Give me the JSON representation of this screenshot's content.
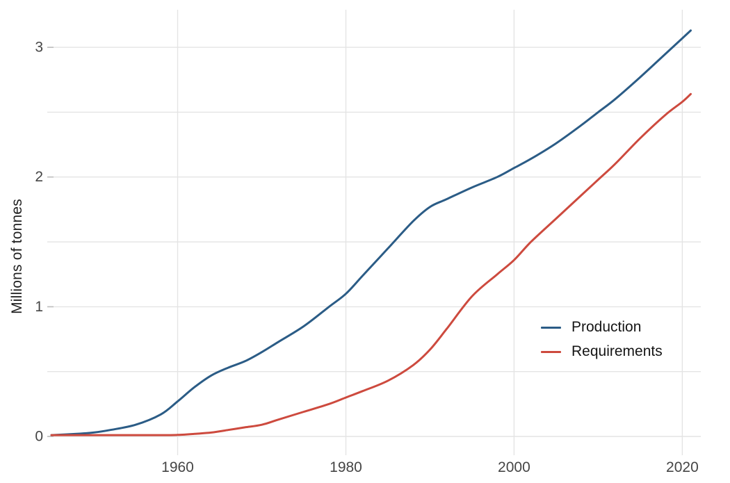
{
  "chart_data": {
    "type": "line",
    "title": "",
    "xlabel": "",
    "ylabel": "Millions of tonnes",
    "x_ticks": [
      1960,
      1980,
      2000,
      2020
    ],
    "y_ticks": [
      0,
      1,
      2,
      3
    ],
    "y_minor_gridlines": [
      0.5,
      1.5,
      2.5
    ],
    "xlim": [
      1944.5,
      2022.2
    ],
    "ylim": [
      0,
      3.29
    ],
    "grid": "on",
    "legend_position": "inside-right",
    "x": [
      1945,
      1948,
      1950,
      1952,
      1955,
      1958,
      1960,
      1962,
      1964,
      1966,
      1968,
      1970,
      1972,
      1975,
      1978,
      1980,
      1982,
      1985,
      1988,
      1990,
      1992,
      1995,
      1998,
      2000,
      2002,
      2005,
      2008,
      2010,
      2012,
      2015,
      2018,
      2020,
      2021
    ],
    "series": [
      {
        "name": "Production",
        "color": "#2b5c86",
        "values": [
          0.01,
          0.02,
          0.03,
          0.05,
          0.09,
          0.17,
          0.27,
          0.38,
          0.47,
          0.53,
          0.58,
          0.65,
          0.73,
          0.85,
          1.0,
          1.1,
          1.24,
          1.45,
          1.66,
          1.77,
          1.83,
          1.92,
          2.0,
          2.07,
          2.14,
          2.26,
          2.4,
          2.5,
          2.6,
          2.77,
          2.95,
          3.07,
          3.13
        ]
      },
      {
        "name": "Requirements",
        "color": "#cd4a3e",
        "values": [
          0.01,
          0.01,
          0.01,
          0.01,
          0.01,
          0.01,
          0.012,
          0.02,
          0.03,
          0.05,
          0.07,
          0.09,
          0.13,
          0.19,
          0.25,
          0.3,
          0.35,
          0.43,
          0.55,
          0.67,
          0.83,
          1.08,
          1.25,
          1.36,
          1.5,
          1.68,
          1.86,
          1.98,
          2.1,
          2.3,
          2.48,
          2.58,
          2.64
        ]
      }
    ],
    "colors": {
      "gridline": "#e4e4e4",
      "tick_stub": "#bdbdbd",
      "tick_text": "#454545",
      "background": "#ffffff"
    }
  }
}
